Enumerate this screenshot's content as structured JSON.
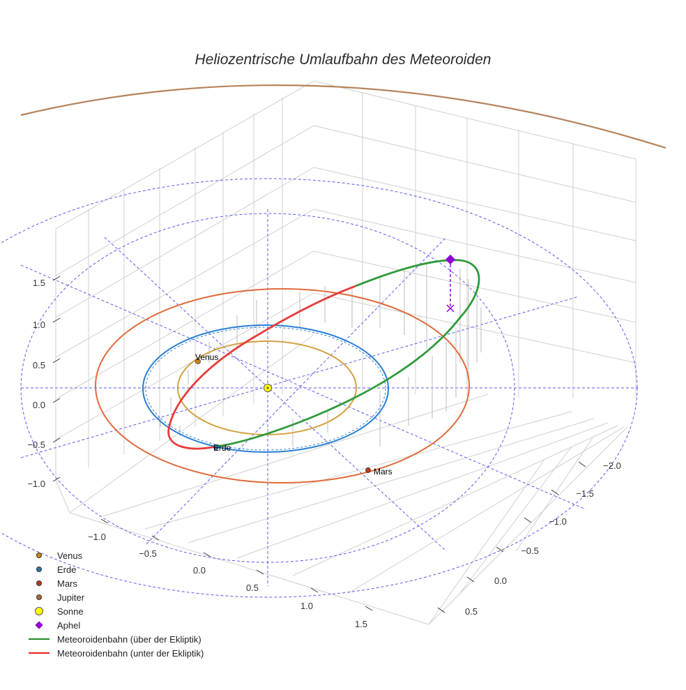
{
  "chart_data": {
    "type": "line",
    "title": "Heliozentrische Umlaufbahn des Meteoroiden",
    "axes": {
      "x_ticks": [
        "−1.0",
        "−0.5",
        "0.0",
        "0.5",
        "1.0",
        "1.5"
      ],
      "y_ticks": [
        "−2.0",
        "−1.5",
        "−1.0",
        "−0.5",
        "0.0",
        "0.5"
      ],
      "z_ticks": [
        "1.5",
        "1.0",
        "0.5",
        "0.0",
        "−0.5",
        "−1.0"
      ],
      "grid": true
    },
    "planet_labels": {
      "venus": "Venus",
      "erde": "Erde",
      "mars": "Mars"
    },
    "orbits_au": {
      "Venus": 0.72,
      "Erde": 1.0,
      "Mars": 1.52,
      "Jupiter": 5.2
    },
    "legend": [
      {
        "label": "Venus",
        "marker": "dot",
        "color": "#d4820a"
      },
      {
        "label": "Erde",
        "marker": "dot",
        "color": "#1f77b4"
      },
      {
        "label": "Mars",
        "marker": "dot",
        "color": "#c0391a"
      },
      {
        "label": "Jupiter",
        "marker": "dot",
        "color": "#b5652e"
      },
      {
        "label": "Sonne",
        "marker": "bigdot",
        "color": "#ffff00"
      },
      {
        "label": "Aphel",
        "marker": "diamond",
        "color": "#9400d3"
      },
      {
        "label": "Meteoroidenbahn (über der Ekliptik)",
        "marker": "line",
        "color": "#1e8c1e"
      },
      {
        "label": "Meteoroidenbahn (unter der Ekliptik)",
        "marker": "line",
        "color": "#e8211c"
      }
    ],
    "colors": {
      "venus_orbit": "#d4a040",
      "earth_orbit": "#2a7fd4",
      "mars_orbit": "#e06a3a",
      "jupiter_orbit": "#b5835a",
      "meteoroid_above": "#2e9a3a",
      "meteoroid_below": "#e83a3a",
      "reference_grid": "#5555ee",
      "aphel": "#9400d3"
    }
  }
}
